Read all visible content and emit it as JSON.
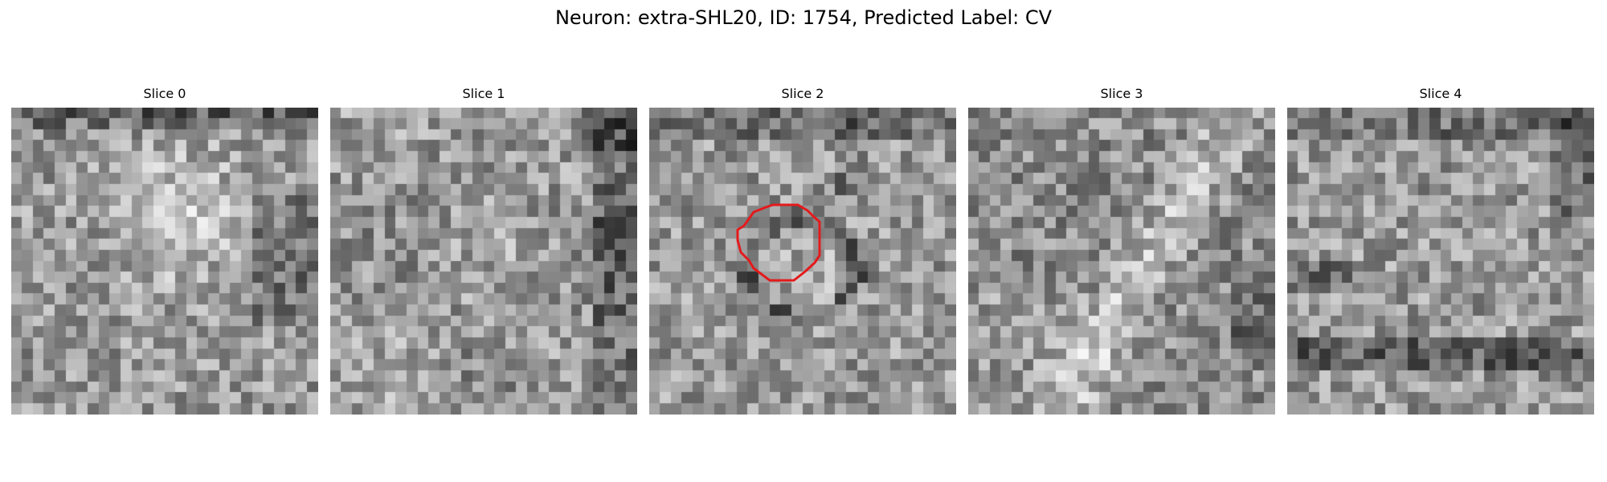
{
  "figure": {
    "title": "Neuron: extra-SHL20, ID: 1754, Predicted Label: CV"
  },
  "slices": [
    {
      "title": "Slice 0",
      "has_contour": false,
      "pattern": "dark-top-bright-center"
    },
    {
      "title": "Slice 1",
      "has_contour": false,
      "pattern": "dark-right-edge"
    },
    {
      "title": "Slice 2",
      "has_contour": true,
      "pattern": "ring-around-center"
    },
    {
      "title": "Slice 3",
      "has_contour": false,
      "pattern": "bright-diagonal-band"
    },
    {
      "title": "Slice 4",
      "has_contour": false,
      "pattern": "dark-horizontal-band"
    }
  ],
  "colors": {
    "contour": "#e41a1c",
    "background": "#ffffff"
  },
  "colormap": "gray",
  "grid_size": 28
}
